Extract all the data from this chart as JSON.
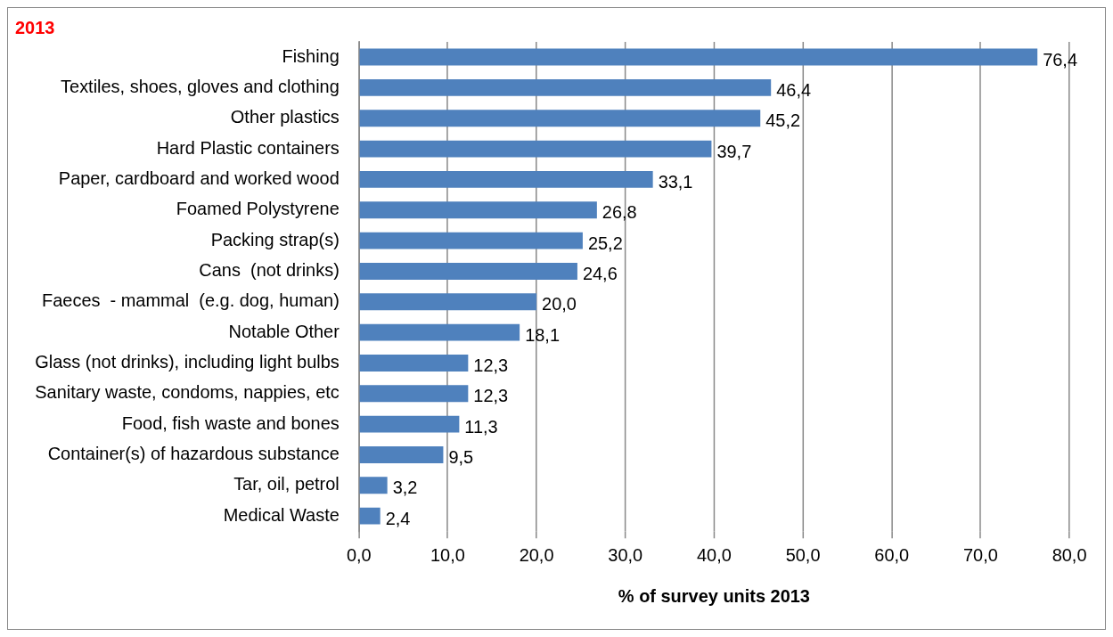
{
  "chart_data": {
    "type": "bar",
    "orientation": "horizontal",
    "title": "2013",
    "xlabel": "% of survey units 2013",
    "categories": [
      "Fishing",
      "Textiles, shoes, gloves and clothing",
      "Other plastics",
      "Hard Plastic containers",
      "Paper, cardboard and worked wood",
      "Foamed Polystyrene",
      "Packing strap(s)",
      "Cans  (not drinks)",
      "Faeces  - mammal  (e.g. dog, human)",
      "Notable Other",
      "Glass (not drinks), including light bulbs",
      "Sanitary waste, condoms, nappies, etc",
      "Food, fish waste and bones",
      "Container(s) of hazardous substance",
      "Tar, oil, petrol",
      "Medical Waste"
    ],
    "values": [
      76.4,
      46.4,
      45.2,
      39.7,
      33.1,
      26.8,
      25.2,
      24.6,
      20.0,
      18.1,
      12.3,
      12.3,
      11.3,
      9.5,
      3.2,
      2.4
    ],
    "value_labels": [
      "76,4",
      "46,4",
      "45,2",
      "39,7",
      "33,1",
      "26,8",
      "25,2",
      "24,6",
      "20,0",
      "18,1",
      "12,3",
      "12,3",
      "11,3",
      "9,5",
      "3,2",
      "2,4"
    ],
    "color": "#4f81bd",
    "xlim": [
      0,
      80
    ],
    "xticks": [
      {
        "value": 0,
        "label": "0,0"
      },
      {
        "value": 10,
        "label": "10,0"
      },
      {
        "value": 20,
        "label": "20,0"
      },
      {
        "value": 30,
        "label": "30,0"
      },
      {
        "value": 40,
        "label": "40,0"
      },
      {
        "value": 50,
        "label": "50,0"
      },
      {
        "value": 60,
        "label": "60,0"
      },
      {
        "value": 70,
        "label": "70,0"
      },
      {
        "value": 80,
        "label": "80,0"
      }
    ],
    "grid": "x",
    "legend": false
  }
}
